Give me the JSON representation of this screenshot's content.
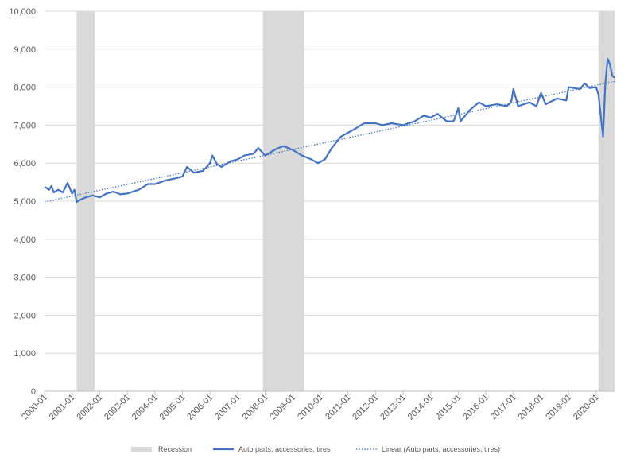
{
  "chart_data": {
    "type": "line",
    "title": "",
    "xlabel": "",
    "ylabel": "",
    "ylim": [
      0,
      10000
    ],
    "y_ticks": [
      "0",
      "1,000",
      "2,000",
      "3,000",
      "4,000",
      "5,000",
      "6,000",
      "7,000",
      "8,000",
      "9,000",
      "10,000"
    ],
    "x_ticks": [
      "2000-01",
      "2001-01",
      "2002-01",
      "2003-01",
      "2004-01",
      "2005-01",
      "2006-01",
      "2007-01",
      "2008-01",
      "2009-01",
      "2010-01",
      "2011-01",
      "2012-01",
      "2013-01",
      "2014-01",
      "2015-01",
      "2016-01",
      "2017-01",
      "2018-01",
      "2019-01",
      "2020-01"
    ],
    "x_range": [
      "2000-01",
      "2020-09"
    ],
    "grid": "horizontal",
    "legend_position": "bottom",
    "recessions": [
      {
        "start": "2001-03",
        "end": "2001-11"
      },
      {
        "start": "2007-12",
        "end": "2009-06"
      },
      {
        "start": "2020-02",
        "end": "2020-09"
      }
    ],
    "series": [
      {
        "name": "Auto parts, accessories, tires",
        "color": "#4472c4",
        "points": [
          [
            "2000-01",
            5380
          ],
          [
            "2000-03",
            5300
          ],
          [
            "2000-04",
            5400
          ],
          [
            "2000-05",
            5230
          ],
          [
            "2000-07",
            5300
          ],
          [
            "2000-09",
            5230
          ],
          [
            "2000-11",
            5480
          ],
          [
            "2001-01",
            5200
          ],
          [
            "2001-02",
            5300
          ],
          [
            "2001-03",
            4980
          ],
          [
            "2001-05",
            5050
          ],
          [
            "2001-07",
            5100
          ],
          [
            "2001-10",
            5150
          ],
          [
            "2002-01",
            5100
          ],
          [
            "2002-04",
            5200
          ],
          [
            "2002-07",
            5250
          ],
          [
            "2002-10",
            5180
          ],
          [
            "2003-01",
            5200
          ],
          [
            "2003-06",
            5300
          ],
          [
            "2003-10",
            5450
          ],
          [
            "2004-01",
            5450
          ],
          [
            "2004-06",
            5550
          ],
          [
            "2004-10",
            5600
          ],
          [
            "2005-01",
            5650
          ],
          [
            "2005-03",
            5900
          ],
          [
            "2005-06",
            5750
          ],
          [
            "2005-10",
            5800
          ],
          [
            "2006-01",
            6000
          ],
          [
            "2006-02",
            6200
          ],
          [
            "2006-04",
            5980
          ],
          [
            "2006-06",
            5900
          ],
          [
            "2006-10",
            6050
          ],
          [
            "2007-01",
            6100
          ],
          [
            "2007-04",
            6200
          ],
          [
            "2007-08",
            6250
          ],
          [
            "2007-10",
            6400
          ],
          [
            "2008-01",
            6200
          ],
          [
            "2008-06",
            6380
          ],
          [
            "2008-09",
            6450
          ],
          [
            "2009-01",
            6350
          ],
          [
            "2009-05",
            6200
          ],
          [
            "2009-09",
            6100
          ],
          [
            "2009-12",
            6000
          ],
          [
            "2010-03",
            6100
          ],
          [
            "2010-06",
            6400
          ],
          [
            "2010-10",
            6700
          ],
          [
            "2011-01",
            6800
          ],
          [
            "2011-04",
            6900
          ],
          [
            "2011-08",
            7050
          ],
          [
            "2012-01",
            7050
          ],
          [
            "2012-04",
            7000
          ],
          [
            "2012-08",
            7050
          ],
          [
            "2013-01",
            7000
          ],
          [
            "2013-06",
            7100
          ],
          [
            "2013-10",
            7250
          ],
          [
            "2014-01",
            7200
          ],
          [
            "2014-04",
            7300
          ],
          [
            "2014-08",
            7100
          ],
          [
            "2014-11",
            7100
          ],
          [
            "2015-01",
            7450
          ],
          [
            "2015-02",
            7100
          ],
          [
            "2015-06",
            7400
          ],
          [
            "2015-10",
            7600
          ],
          [
            "2016-01",
            7500
          ],
          [
            "2016-06",
            7550
          ],
          [
            "2016-10",
            7500
          ],
          [
            "2016-12",
            7600
          ],
          [
            "2017-01",
            7950
          ],
          [
            "2017-03",
            7500
          ],
          [
            "2017-08",
            7600
          ],
          [
            "2017-11",
            7500
          ],
          [
            "2018-01",
            7850
          ],
          [
            "2018-03",
            7550
          ],
          [
            "2018-08",
            7700
          ],
          [
            "2018-12",
            7650
          ],
          [
            "2019-01",
            8000
          ],
          [
            "2019-06",
            7950
          ],
          [
            "2019-08",
            8100
          ],
          [
            "2019-10",
            7980
          ],
          [
            "2020-01",
            8000
          ],
          [
            "2020-02",
            7800
          ],
          [
            "2020-04",
            6700
          ],
          [
            "2020-05",
            8100
          ],
          [
            "2020-06",
            8750
          ],
          [
            "2020-07",
            8600
          ],
          [
            "2020-08",
            8300
          ],
          [
            "2020-09",
            8250
          ]
        ]
      }
    ],
    "trendline": {
      "name": "Linear (Auto parts, accessories, tires)",
      "color": "#4472c4",
      "start": [
        "2000-01",
        4980
      ],
      "end": [
        "2020-09",
        8150
      ]
    },
    "legend": [
      {
        "label": "Recession",
        "kind": "recession",
        "color": "#d9d9d9"
      },
      {
        "label": "Auto parts, accessories, tires",
        "kind": "line",
        "color": "#4472c4"
      },
      {
        "label": "Linear (Auto parts, accessories, tires)",
        "kind": "dotted",
        "color": "#4472c4"
      }
    ],
    "colors": {
      "grid": "#d9d9d9",
      "axis": "#bfbfbf",
      "text": "#595959",
      "recession": "#d9d9d9"
    }
  }
}
